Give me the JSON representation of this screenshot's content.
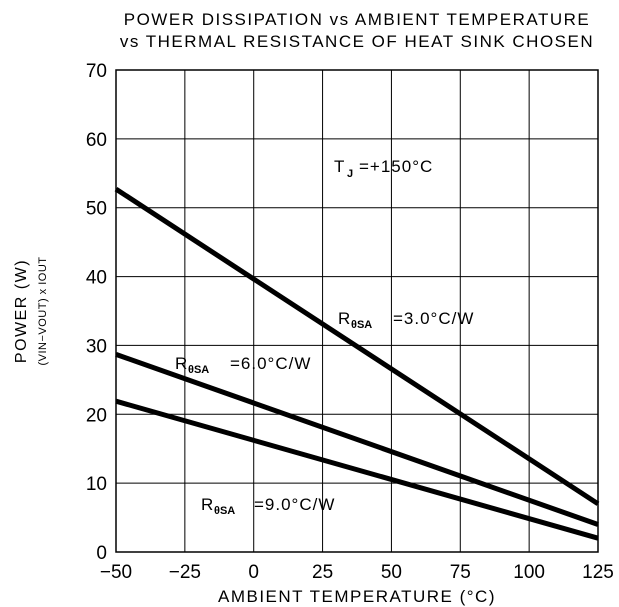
{
  "chart_data": {
    "type": "line",
    "title_line1": "POWER DISSIPATION vs AMBIENT TEMPERATURE",
    "title_line2": "vs THERMAL RESISTANCE OF HEAT SINK CHOSEN",
    "xlabel": "AMBIENT TEMPERATURE (°C)",
    "ylabel_main": "POWER (W)",
    "ylabel_sub": "(VIN−VOUT) x IOUT",
    "xlim": [
      -50,
      125
    ],
    "ylim": [
      0,
      70
    ],
    "xticks": [
      -50,
      -25,
      0,
      25,
      50,
      75,
      100,
      125
    ],
    "xtick_labels": [
      "−50",
      "−25",
      "0",
      "25",
      "50",
      "75",
      "100",
      "125"
    ],
    "yticks": [
      0,
      10,
      20,
      30,
      40,
      50,
      60,
      70
    ],
    "ytick_labels": [
      "0",
      "10",
      "20",
      "30",
      "40",
      "50",
      "60",
      "70"
    ],
    "grid": true,
    "annotation_tj": "T",
    "annotation_tj_sub": "J",
    "annotation_tj_value": "=+150°C",
    "series": [
      {
        "name": "=3.0°C/W",
        "label_prefix": "R",
        "label_sub": "θSA",
        "x": [
          -50,
          125
        ],
        "y": [
          52.7,
          7.0
        ]
      },
      {
        "name": "=6.0°C/W",
        "label_prefix": "R",
        "label_sub": "θSA",
        "x": [
          -50,
          125
        ],
        "y": [
          28.7,
          4.0
        ]
      },
      {
        "name": "=9.0°C/W",
        "label_prefix": "R",
        "label_sub": "θSA",
        "x": [
          -50,
          125
        ],
        "y": [
          21.9,
          2.0
        ]
      }
    ]
  }
}
